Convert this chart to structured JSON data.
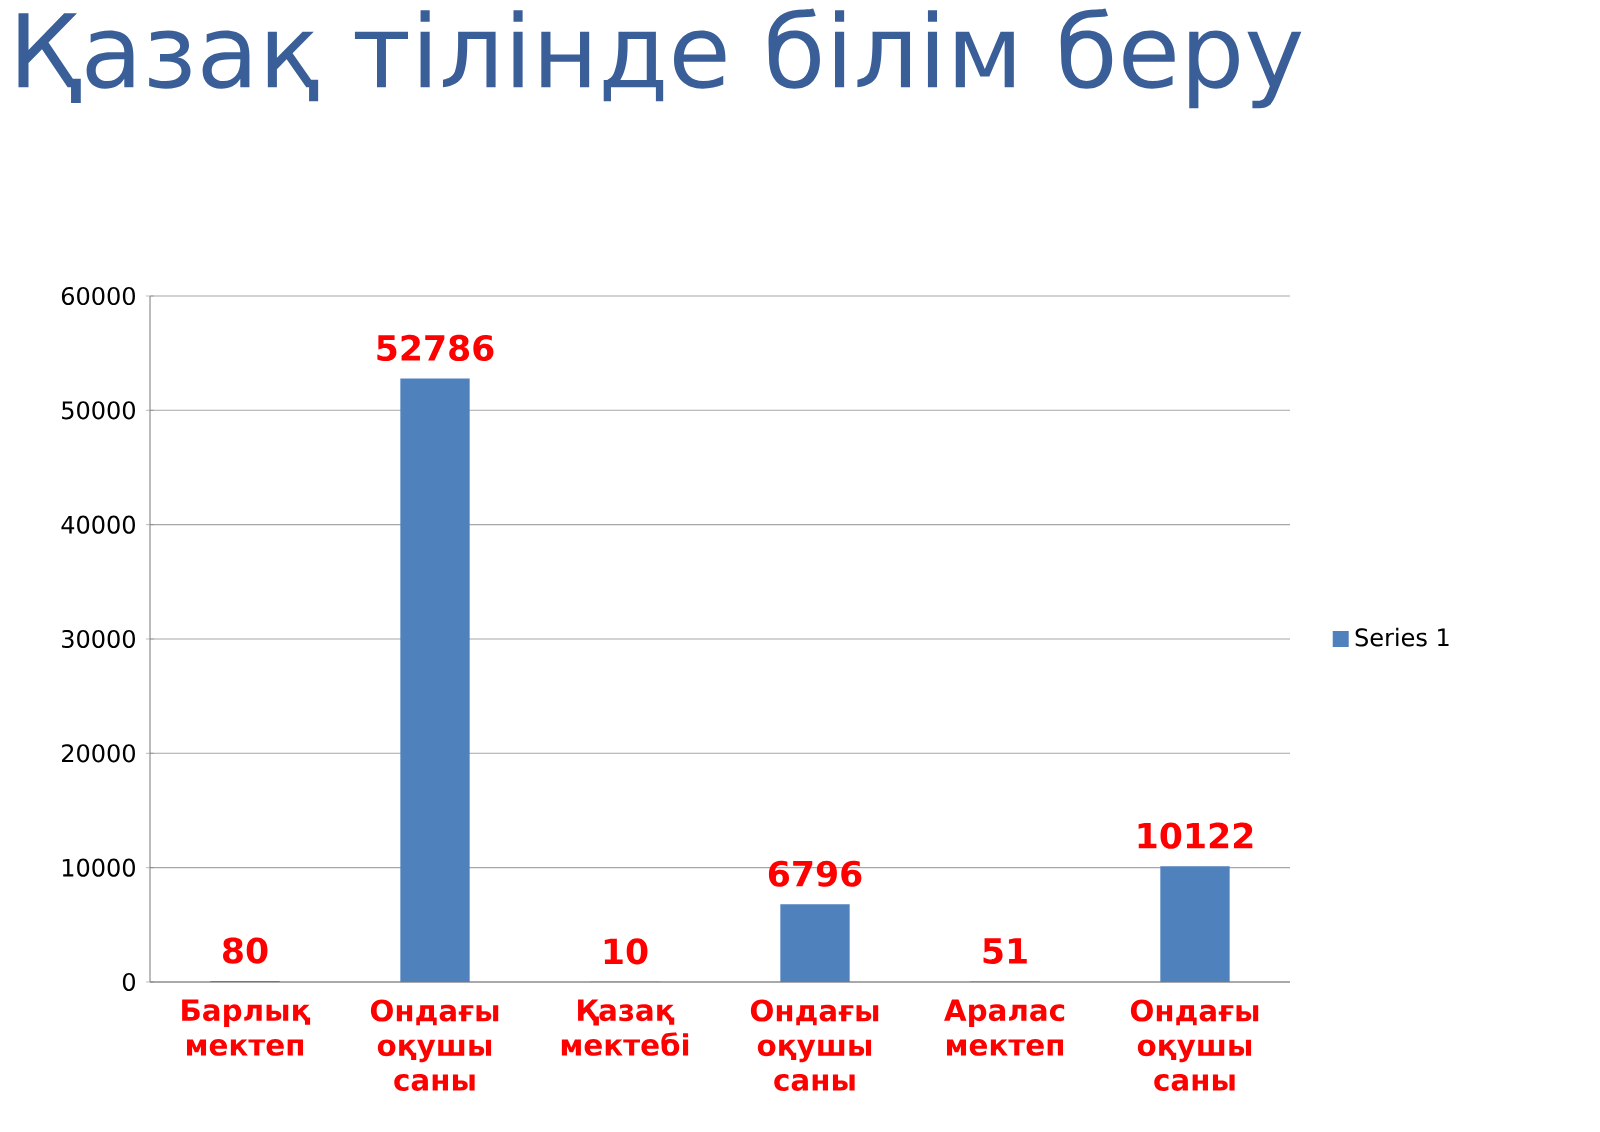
{
  "chart_data": {
    "type": "bar",
    "title": "Қазақ тілінде білім беру",
    "categories": [
      "Барлық мектеп",
      "Ондағы оқушы саны",
      "Қазақ мектебі",
      "Ондағы оқушы саны",
      "Аралас мектеп",
      "Ондағы оқушы саны"
    ],
    "series": [
      {
        "name": "Series 1",
        "color": "#4f81bd",
        "values": [
          80,
          52786,
          10,
          6796,
          51,
          10122
        ]
      }
    ],
    "ylim": [
      0,
      60000
    ],
    "yticks": [
      0,
      10000,
      20000,
      30000,
      40000,
      50000,
      60000
    ],
    "grid": "y",
    "legend": "right",
    "data_labels": true
  }
}
